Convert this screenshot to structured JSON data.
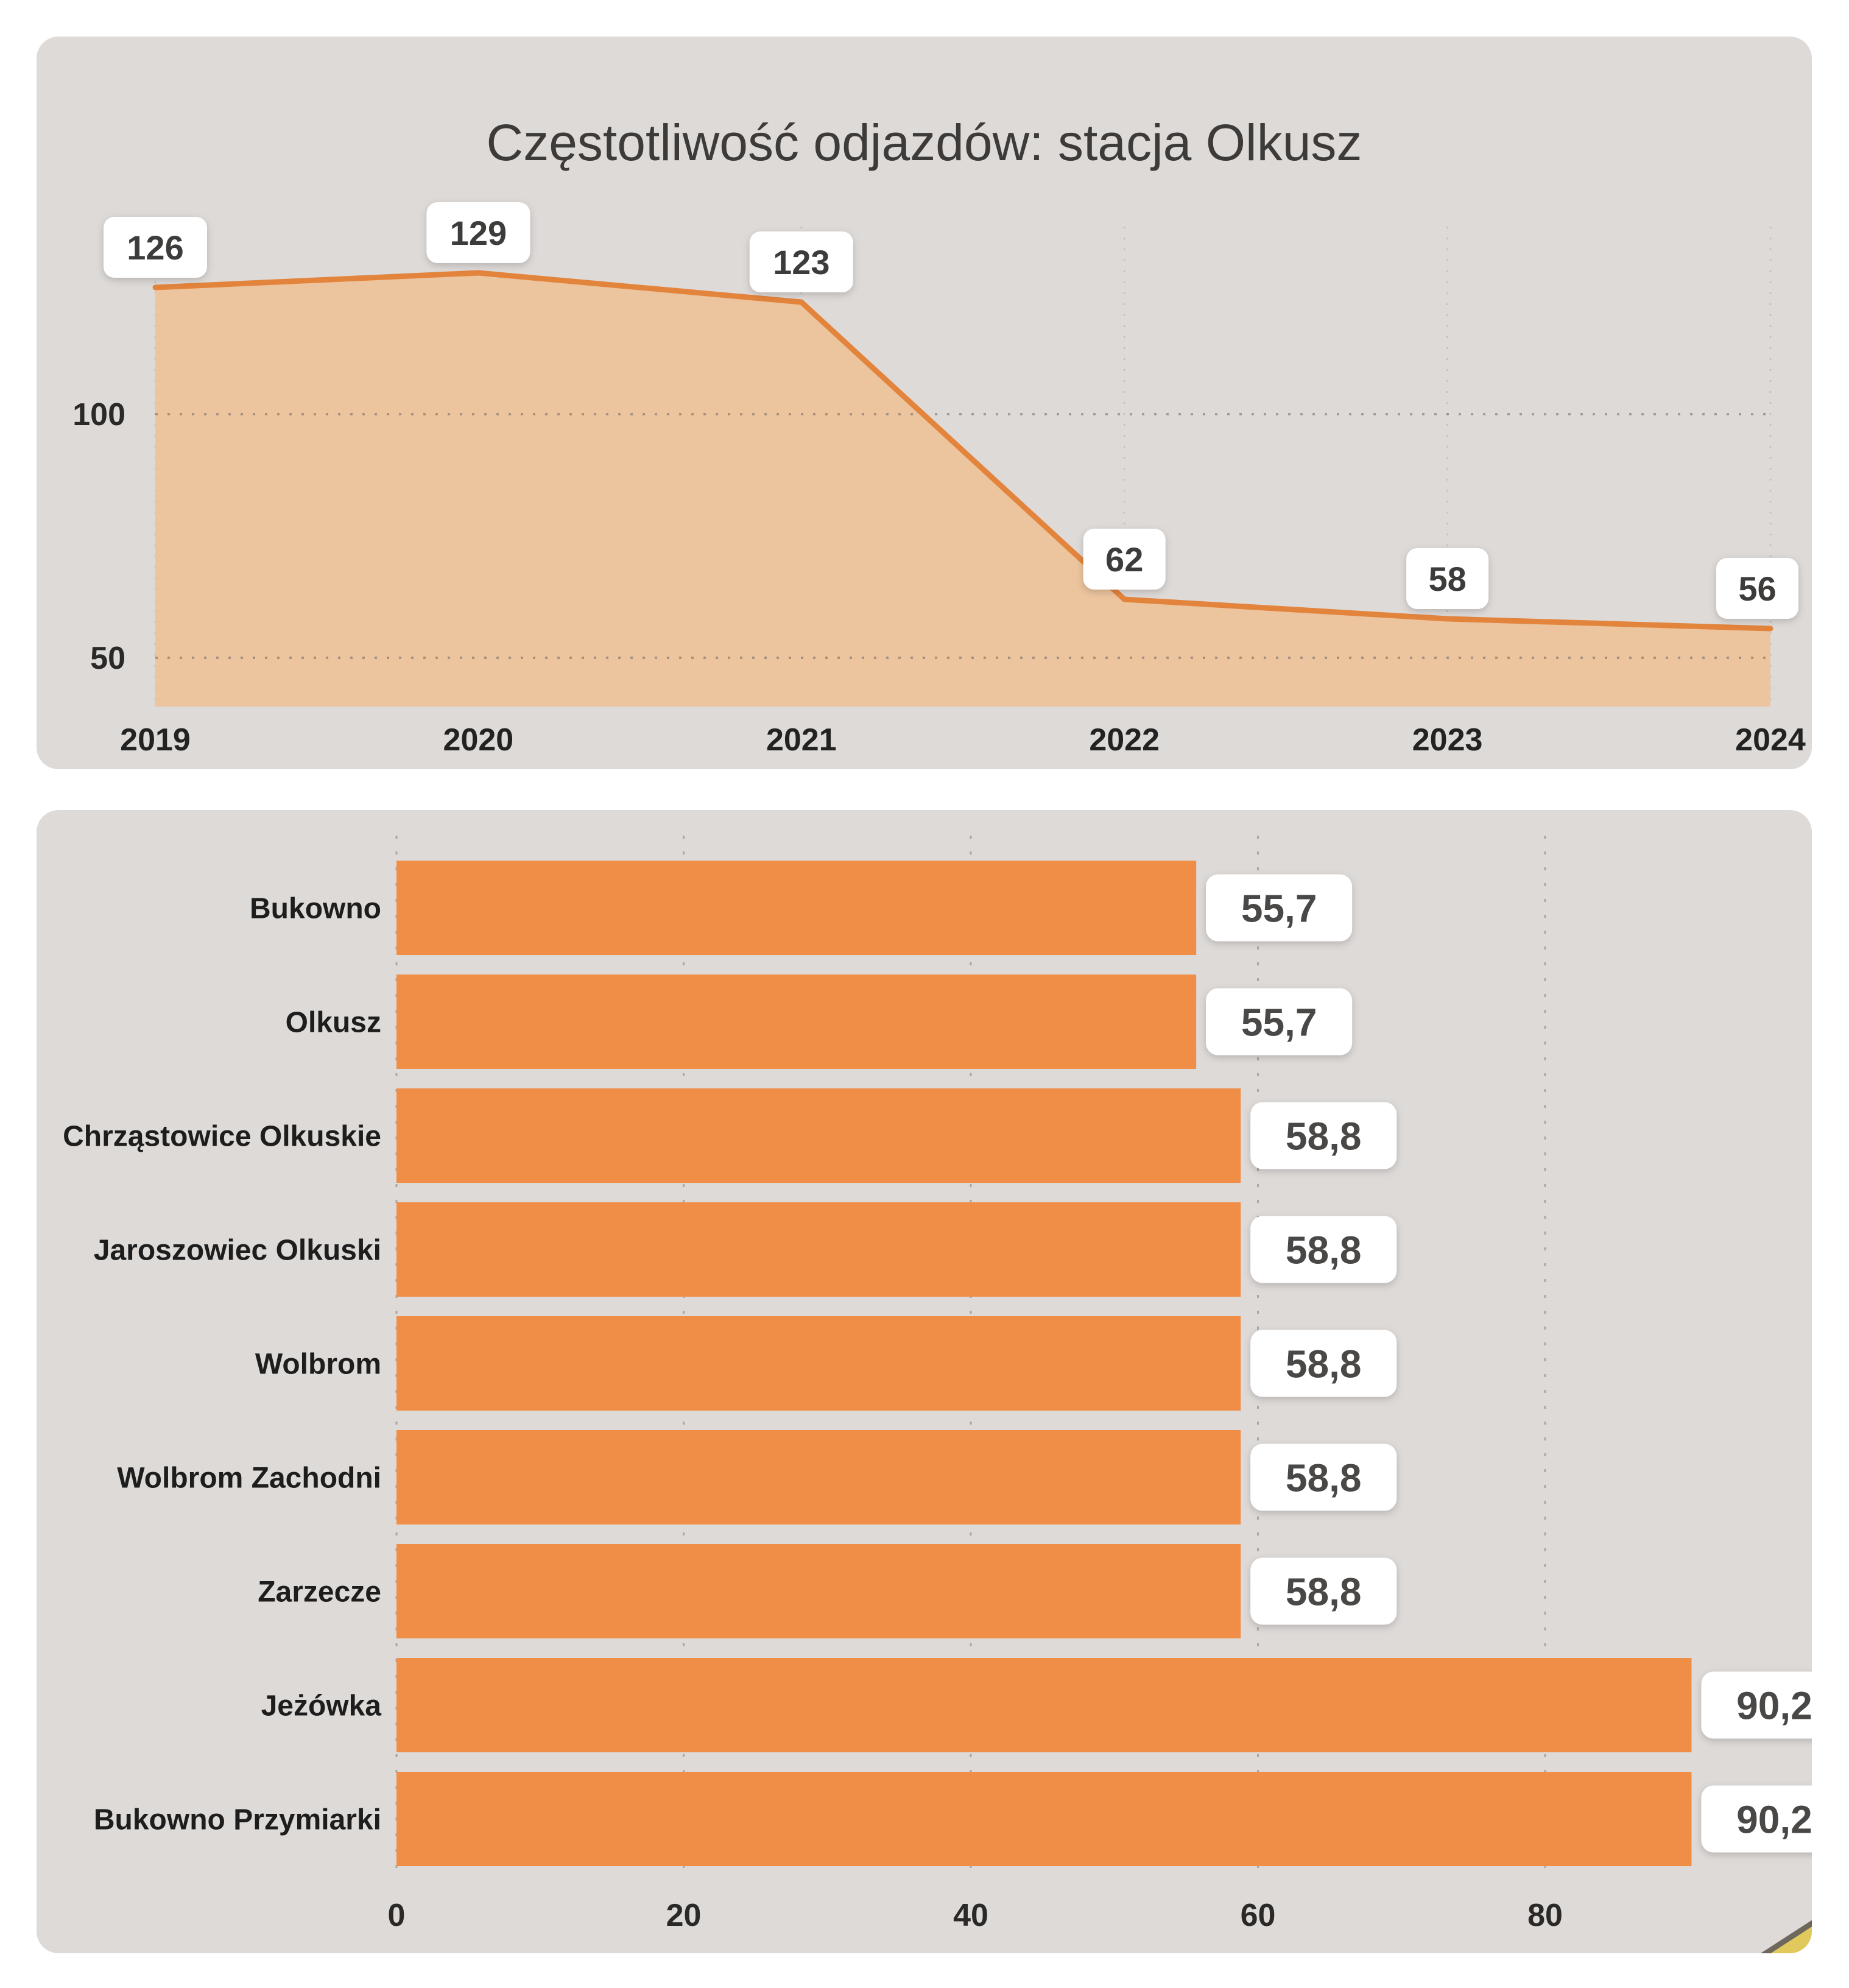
{
  "page": {
    "background": "#ffffff",
    "panel_background": "#dedad8"
  },
  "chart_data": [
    {
      "type": "area",
      "title": "Częstotliwość odjazdów: stacja Olkusz",
      "x": [
        "2019",
        "2020",
        "2021",
        "2022",
        "2023",
        "2024"
      ],
      "series": [
        {
          "name": "Częstotliwość odjazdów",
          "values": [
            126,
            129,
            123,
            62,
            58,
            56
          ]
        }
      ],
      "point_labels": [
        "126",
        "129",
        "123",
        "62",
        "58",
        "56"
      ],
      "yticks": [
        50,
        100
      ],
      "ylim": [
        40,
        140
      ],
      "xlabel": "",
      "ylabel": "",
      "legend": "none",
      "grid": "dotted horizontal at yticks, faint dotted vertical per year",
      "line_color": "#e3843c",
      "fill_color": "#ecc49e",
      "label_box_bg": "#ffffff",
      "label_text_color": "#3d3c3b",
      "axis_text_color": "#2a2928"
    },
    {
      "type": "bar",
      "orientation": "horizontal",
      "categories": [
        "Bukowno",
        "Olkusz",
        "Chrząstowice Olkuskie",
        "Jaroszowiec Olkuski",
        "Wolbrom",
        "Wolbrom Zachodni",
        "Zarzecze",
        "Jeżówka",
        "Bukowno Przymiarki"
      ],
      "values": [
        55.7,
        55.7,
        58.8,
        58.8,
        58.8,
        58.8,
        58.8,
        90.2,
        90.2
      ],
      "value_labels": [
        "55,7",
        "55,7",
        "58,8",
        "58,8",
        "58,8",
        "58,8",
        "58,8",
        "90,2",
        "90,2"
      ],
      "xticks": [
        0,
        20,
        40,
        60,
        80
      ],
      "xlim": [
        0,
        98
      ],
      "xlabel": "",
      "ylabel": "",
      "legend": "none",
      "grid": "dashed vertical at xticks, behind bars",
      "bar_color": "#f08e48",
      "label_box_bg": "#ffffff",
      "label_text_color": "#4a4846",
      "category_text_color": "#1d1d1d",
      "axis_text_color": "#2a2928"
    }
  ],
  "decorations": {
    "corner_artifact": "pencil-tip",
    "corner_artifact_fill": "#e2c95e",
    "corner_artifact_edge": "#6e675b"
  }
}
